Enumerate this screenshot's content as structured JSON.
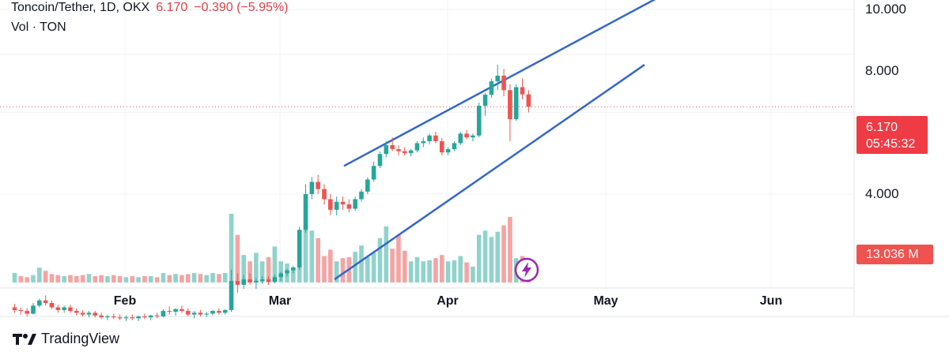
{
  "legend": {
    "symbol": "Toncoin/Tether, 1D, OKX",
    "last": "6.170",
    "change": "−0.390 (−5.95%)",
    "volume_label": "Vol · TON"
  },
  "badges": {
    "price": "6.170",
    "countdown": "05:45:32",
    "volume": "13.036 M"
  },
  "brand": {
    "name": "TradingView",
    "logo_icon": "tradingview-logo-icon"
  },
  "colors": {
    "up": "#26a69a",
    "down": "#ef5350",
    "vol_up": "#8fd3cb",
    "vol_down": "#f5a3a3",
    "channel": "#3366cc",
    "price_line": "#ef5350"
  },
  "chart_data": {
    "type": "candlestick",
    "symbol": "Toncoin/Tether",
    "interval": "1D",
    "exchange": "OKX",
    "y_ticks": [
      "10.000",
      "8.000",
      "4.000"
    ],
    "y_scale": "log",
    "x_ticks": [
      "Feb",
      "Mar",
      "Apr",
      "May",
      "Jun"
    ],
    "last_price": 6.17,
    "ohlc": [
      [
        2.28,
        2.32,
        2.22,
        2.25
      ],
      [
        2.25,
        2.28,
        2.2,
        2.24
      ],
      [
        2.24,
        2.27,
        2.18,
        2.21
      ],
      [
        2.21,
        2.33,
        2.2,
        2.3
      ],
      [
        2.3,
        2.38,
        2.28,
        2.36
      ],
      [
        2.36,
        2.42,
        2.3,
        2.33
      ],
      [
        2.33,
        2.36,
        2.26,
        2.28
      ],
      [
        2.28,
        2.31,
        2.22,
        2.25
      ],
      [
        2.25,
        2.3,
        2.22,
        2.28
      ],
      [
        2.28,
        2.31,
        2.22,
        2.24
      ],
      [
        2.24,
        2.27,
        2.19,
        2.22
      ],
      [
        2.22,
        2.25,
        2.18,
        2.2
      ],
      [
        2.2,
        2.24,
        2.17,
        2.22
      ],
      [
        2.22,
        2.24,
        2.17,
        2.19
      ],
      [
        2.19,
        2.22,
        2.15,
        2.17
      ],
      [
        2.17,
        2.2,
        2.14,
        2.18
      ],
      [
        2.18,
        2.21,
        2.15,
        2.17
      ],
      [
        2.17,
        2.2,
        2.14,
        2.16
      ],
      [
        2.16,
        2.19,
        2.13,
        2.17
      ],
      [
        2.17,
        2.2,
        2.14,
        2.16
      ],
      [
        2.16,
        2.19,
        2.13,
        2.18
      ],
      [
        2.18,
        2.21,
        2.15,
        2.17
      ],
      [
        2.17,
        2.2,
        2.14,
        2.19
      ],
      [
        2.19,
        2.22,
        2.16,
        2.18
      ],
      [
        2.18,
        2.26,
        2.17,
        2.24
      ],
      [
        2.24,
        2.29,
        2.2,
        2.23
      ],
      [
        2.23,
        2.27,
        2.19,
        2.26
      ],
      [
        2.26,
        2.3,
        2.22,
        2.24
      ],
      [
        2.24,
        2.27,
        2.18,
        2.2
      ],
      [
        2.2,
        2.24,
        2.16,
        2.22
      ],
      [
        2.22,
        2.25,
        2.18,
        2.2
      ],
      [
        2.2,
        2.23,
        2.17,
        2.21
      ],
      [
        2.21,
        2.25,
        2.19,
        2.24
      ],
      [
        2.24,
        2.27,
        2.2,
        2.22
      ],
      [
        2.22,
        2.26,
        2.2,
        2.25
      ],
      [
        2.25,
        2.75,
        2.23,
        2.6
      ],
      [
        2.6,
        2.7,
        2.45,
        2.55
      ],
      [
        2.55,
        2.68,
        2.5,
        2.62
      ],
      [
        2.62,
        2.7,
        2.55,
        2.58
      ],
      [
        2.58,
        2.64,
        2.5,
        2.6
      ],
      [
        2.6,
        2.66,
        2.56,
        2.62
      ],
      [
        2.62,
        2.66,
        2.55,
        2.59
      ],
      [
        2.59,
        2.68,
        2.57,
        2.65
      ],
      [
        2.65,
        2.72,
        2.6,
        2.7
      ],
      [
        2.7,
        2.76,
        2.66,
        2.74
      ],
      [
        2.74,
        2.8,
        2.7,
        2.78
      ],
      [
        2.78,
        3.4,
        2.75,
        3.35
      ],
      [
        3.35,
        4.2,
        3.3,
        4.0
      ],
      [
        4.0,
        4.35,
        3.9,
        4.25
      ],
      [
        4.25,
        4.4,
        4.0,
        4.1
      ],
      [
        4.1,
        4.2,
        3.8,
        3.9
      ],
      [
        3.9,
        4.0,
        3.6,
        3.7
      ],
      [
        3.7,
        3.95,
        3.6,
        3.85
      ],
      [
        3.85,
        3.95,
        3.7,
        3.8
      ],
      [
        3.8,
        3.9,
        3.65,
        3.72
      ],
      [
        3.72,
        3.95,
        3.68,
        3.9
      ],
      [
        3.9,
        4.1,
        3.85,
        4.05
      ],
      [
        4.05,
        4.35,
        4.0,
        4.3
      ],
      [
        4.3,
        4.7,
        4.25,
        4.6
      ],
      [
        4.6,
        4.95,
        4.55,
        4.88
      ],
      [
        4.88,
        5.2,
        4.8,
        5.1
      ],
      [
        5.1,
        5.3,
        4.95,
        5.0
      ],
      [
        5.0,
        5.1,
        4.85,
        4.95
      ],
      [
        4.95,
        5.05,
        4.85,
        4.9
      ],
      [
        4.9,
        5.0,
        4.82,
        4.97
      ],
      [
        4.97,
        5.2,
        4.92,
        5.15
      ],
      [
        5.15,
        5.3,
        5.05,
        5.2
      ],
      [
        5.2,
        5.4,
        5.12,
        5.35
      ],
      [
        5.35,
        5.45,
        5.15,
        5.2
      ],
      [
        5.2,
        5.28,
        4.85,
        4.92
      ],
      [
        4.92,
        5.05,
        4.85,
        5.0
      ],
      [
        5.0,
        5.2,
        4.95,
        5.15
      ],
      [
        5.15,
        5.45,
        5.1,
        5.4
      ],
      [
        5.4,
        5.5,
        5.25,
        5.3
      ],
      [
        5.3,
        5.4,
        5.2,
        5.35
      ],
      [
        5.35,
        6.3,
        5.3,
        6.2
      ],
      [
        6.2,
        6.6,
        5.9,
        6.55
      ],
      [
        6.55,
        7.1,
        6.45,
        7.0
      ],
      [
        7.0,
        7.6,
        6.7,
        7.2
      ],
      [
        7.2,
        7.45,
        6.5,
        6.7
      ],
      [
        6.7,
        6.9,
        5.2,
        5.8
      ],
      [
        5.8,
        6.9,
        5.75,
        6.8
      ],
      [
        6.8,
        7.1,
        6.4,
        6.56
      ],
      [
        6.56,
        6.7,
        6.0,
        6.17
      ]
    ],
    "volume": [
      [
        0.9,
        1
      ],
      [
        0.6,
        0
      ],
      [
        0.5,
        0
      ],
      [
        0.7,
        1
      ],
      [
        1.4,
        1
      ],
      [
        1.1,
        0
      ],
      [
        0.8,
        0
      ],
      [
        0.7,
        0
      ],
      [
        0.6,
        1
      ],
      [
        0.7,
        0
      ],
      [
        0.6,
        0
      ],
      [
        0.7,
        0
      ],
      [
        0.8,
        1
      ],
      [
        0.6,
        0
      ],
      [
        0.7,
        0
      ],
      [
        0.6,
        1
      ],
      [
        0.7,
        0
      ],
      [
        0.6,
        0
      ],
      [
        0.5,
        1
      ],
      [
        0.6,
        0
      ],
      [
        0.5,
        1
      ],
      [
        0.6,
        0
      ],
      [
        0.6,
        1
      ],
      [
        0.5,
        0
      ],
      [
        0.9,
        1
      ],
      [
        0.7,
        0
      ],
      [
        0.8,
        1
      ],
      [
        0.7,
        0
      ],
      [
        0.8,
        0
      ],
      [
        0.9,
        1
      ],
      [
        0.8,
        0
      ],
      [
        0.7,
        1
      ],
      [
        0.9,
        1
      ],
      [
        0.8,
        0
      ],
      [
        0.9,
        1
      ],
      [
        6.5,
        1
      ],
      [
        4.5,
        0
      ],
      [
        2.6,
        1
      ],
      [
        2.0,
        0
      ],
      [
        2.8,
        1
      ],
      [
        2.0,
        1
      ],
      [
        2.4,
        0
      ],
      [
        3.4,
        1
      ],
      [
        2.0,
        1
      ],
      [
        1.8,
        1
      ],
      [
        1.2,
        1
      ],
      [
        4.2,
        1
      ],
      [
        5.5,
        1
      ],
      [
        4.9,
        1
      ],
      [
        4.2,
        0
      ],
      [
        2.5,
        0
      ],
      [
        3.1,
        0
      ],
      [
        2.0,
        1
      ],
      [
        2.3,
        0
      ],
      [
        2.4,
        0
      ],
      [
        2.9,
        1
      ],
      [
        3.5,
        1
      ],
      [
        2.4,
        1
      ],
      [
        2.8,
        1
      ],
      [
        4.2,
        1
      ],
      [
        5.3,
        1
      ],
      [
        3.2,
        0
      ],
      [
        4.5,
        0
      ],
      [
        3.0,
        0
      ],
      [
        2.0,
        1
      ],
      [
        2.4,
        1
      ],
      [
        2.0,
        1
      ],
      [
        2.1,
        1
      ],
      [
        2.3,
        0
      ],
      [
        2.6,
        0
      ],
      [
        2.0,
        1
      ],
      [
        2.1,
        1
      ],
      [
        2.5,
        1
      ],
      [
        1.9,
        0
      ],
      [
        1.5,
        1
      ],
      [
        4.5,
        1
      ],
      [
        4.9,
        1
      ],
      [
        4.3,
        1
      ],
      [
        4.8,
        1
      ],
      [
        5.4,
        0
      ],
      [
        6.2,
        0
      ],
      [
        2.3,
        1
      ],
      [
        2.5,
        0
      ],
      [
        1.4,
        0
      ]
    ]
  }
}
